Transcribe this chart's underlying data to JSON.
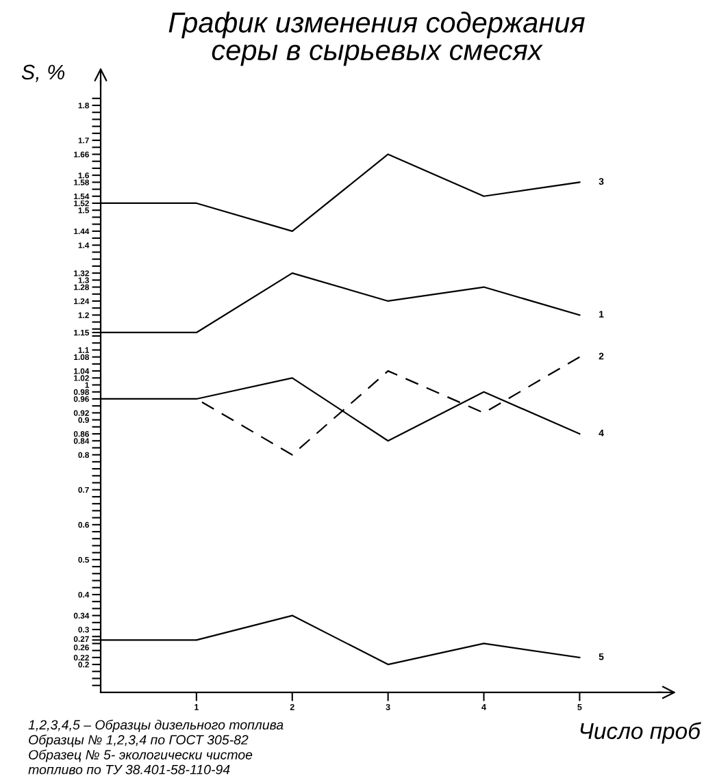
{
  "chart_data": {
    "type": "line",
    "title": "График изменения содержания\nсеры в сырьевых смесях",
    "xlabel": "Число проб",
    "ylabel": "S, %",
    "x": [
      0,
      1,
      2,
      3,
      4,
      5
    ],
    "series": [
      {
        "name": "3",
        "color": "#000000",
        "values": [
          1.52,
          1.52,
          1.44,
          1.66,
          1.54,
          1.58
        ]
      },
      {
        "name": "1",
        "color": "#000000",
        "values": [
          1.15,
          1.15,
          1.32,
          1.24,
          1.28,
          1.2
        ]
      },
      {
        "name": "2",
        "color": "#000000",
        "x": [
          1,
          2,
          3,
          4,
          5
        ],
        "values": [
          0.96,
          0.8,
          1.04,
          0.92,
          1.08
        ],
        "line_style": "dashed"
      },
      {
        "name": "4",
        "color": "#000000",
        "values": [
          0.96,
          0.96,
          1.02,
          0.84,
          0.98,
          0.86
        ]
      },
      {
        "name": "5",
        "color": "#000000",
        "values": [
          0.27,
          0.27,
          0.34,
          0.2,
          0.26,
          0.22
        ]
      }
    ],
    "xlim": [
      0,
      5.85
    ],
    "ylim": [
      0.12,
      1.87
    ],
    "xticks": [
      1,
      2,
      3,
      4,
      5
    ],
    "yticks": [
      {
        "value": 0.14,
        "label": null
      },
      {
        "value": 0.16,
        "label": null
      },
      {
        "value": 0.18,
        "label": null
      },
      0.2,
      0.22,
      {
        "value": 0.24,
        "label": null
      },
      0.26,
      0.27,
      {
        "value": 0.28,
        "label": null
      },
      0.3,
      {
        "value": 0.32,
        "label": null
      },
      0.34,
      {
        "value": 0.36,
        "label": null
      },
      {
        "value": 0.38,
        "label": null
      },
      0.4,
      {
        "value": 0.42,
        "label": null
      },
      {
        "value": 0.44,
        "label": null
      },
      {
        "value": 0.46,
        "label": null
      },
      {
        "value": 0.48,
        "label": null
      },
      0.5,
      {
        "value": 0.52,
        "label": null
      },
      {
        "value": 0.54,
        "label": null
      },
      {
        "value": 0.56,
        "label": null
      },
      {
        "value": 0.58,
        "label": null
      },
      0.6,
      {
        "value": 0.62,
        "label": null
      },
      {
        "value": 0.64,
        "label": null
      },
      {
        "value": 0.66,
        "label": null
      },
      {
        "value": 0.68,
        "label": null
      },
      0.7,
      {
        "value": 0.72,
        "label": null
      },
      {
        "value": 0.74,
        "label": null
      },
      {
        "value": 0.76,
        "label": null
      },
      {
        "value": 0.78,
        "label": null
      },
      0.8,
      {
        "value": 0.82,
        "label": null
      },
      0.84,
      0.86,
      {
        "value": 0.88,
        "label": null
      },
      0.9,
      0.92,
      {
        "value": 0.94,
        "label": null
      },
      0.96,
      0.98,
      1,
      1.02,
      1.04,
      {
        "value": 1.06,
        "label": null
      },
      1.08,
      1.1,
      {
        "value": 1.12,
        "label": null
      },
      {
        "value": 1.14,
        "label": null
      },
      1.15,
      {
        "value": 1.16,
        "label": null
      },
      {
        "value": 1.18,
        "label": null
      },
      1.2,
      {
        "value": 1.22,
        "label": null
      },
      1.24,
      {
        "value": 1.26,
        "label": null
      },
      1.28,
      1.3,
      1.32,
      {
        "value": 1.34,
        "label": null
      },
      {
        "value": 1.36,
        "label": null
      },
      {
        "value": 1.38,
        "label": null
      },
      1.4,
      {
        "value": 1.42,
        "label": null
      },
      1.44,
      {
        "value": 1.46,
        "label": null
      },
      {
        "value": 1.48,
        "label": null
      },
      1.5,
      1.52,
      1.54,
      {
        "value": 1.56,
        "label": null
      },
      1.58,
      1.6,
      {
        "value": 1.62,
        "label": null
      },
      {
        "value": 1.64,
        "label": null
      },
      1.66,
      {
        "value": 1.68,
        "label": null
      },
      1.7,
      {
        "value": 1.72,
        "label": null
      },
      {
        "value": 1.74,
        "label": null
      },
      {
        "value": 1.76,
        "label": null
      },
      {
        "value": 1.78,
        "label": null
      },
      1.8,
      {
        "value": 1.82,
        "label": null
      }
    ],
    "grid": false,
    "legend": false,
    "marker": "none",
    "line_style": "solid",
    "annotations": [
      "1,2,3,4,5 – Образцы дизельного топлива\nОбразцы № 1,2,3,4 по ГОСТ 305-82\nОбразец № 5- экологически чистое\nтопливо по ТУ 38.401-58-110-94"
    ]
  }
}
